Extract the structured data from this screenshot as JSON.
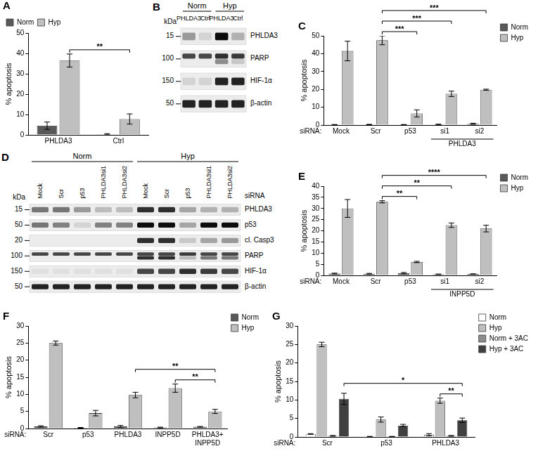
{
  "chart_data": [
    {
      "type": "bar",
      "title": "A",
      "ylabel": "% apoptosis",
      "categories": [
        "PHLDA3",
        "Ctrl"
      ],
      "series": [
        {
          "name": "Norm",
          "color": "#595959",
          "values": [
            4.5,
            0.3
          ],
          "errors": [
            1.8,
            0.3
          ]
        },
        {
          "name": "Hyp",
          "color": "#bfbfbf",
          "values": [
            36.5,
            7.8
          ],
          "errors": [
            3.2,
            2.5
          ]
        }
      ],
      "ylim": [
        0,
        50
      ],
      "yticks": [
        0,
        10,
        20,
        30,
        40,
        50
      ],
      "grid": false,
      "legend": "upper left",
      "annotations": [
        {
          "from": {
            "category": "PHLDA3",
            "series": "Hyp"
          },
          "to": {
            "category": "Ctrl",
            "series": "Hyp"
          },
          "label": "**"
        }
      ]
    },
    {
      "type": "bar",
      "title": "C",
      "ylabel": "% apoptosis",
      "xlabel": "siRNA:",
      "categories": [
        "Mock",
        "Scr",
        "p53",
        "si1",
        "si2"
      ],
      "category_groups": [
        {
          "label": "PHLDA3",
          "categories": [
            "si1",
            "si2"
          ]
        }
      ],
      "series": [
        {
          "name": "Norm",
          "color": "#595959",
          "values": [
            0.2,
            0.3,
            0.2,
            0.3,
            0.7
          ],
          "errors": [
            0.1,
            0.1,
            0.1,
            0.2,
            0.3
          ]
        },
        {
          "name": "Hyp",
          "color": "#bfbfbf",
          "values": [
            41.5,
            47.5,
            6.5,
            17.5,
            19.8
          ],
          "errors": [
            5.5,
            2.5,
            2,
            1.5,
            0.3
          ]
        }
      ],
      "ylim": [
        0,
        50
      ],
      "yticks": [
        0,
        10,
        20,
        30,
        40,
        50
      ],
      "grid": false,
      "legend": "upper right",
      "annotations": [
        {
          "from": {
            "category": "Scr",
            "series": "Hyp"
          },
          "to": {
            "category": "p53",
            "series": "Hyp"
          },
          "label": "***"
        },
        {
          "from": {
            "category": "Scr",
            "series": "Hyp"
          },
          "to": {
            "category": "si1",
            "series": "Hyp"
          },
          "label": "***"
        },
        {
          "from": {
            "category": "Scr",
            "series": "Hyp"
          },
          "to": {
            "category": "si2",
            "series": "Hyp"
          },
          "label": "***"
        }
      ]
    },
    {
      "type": "bar",
      "title": "E",
      "ylabel": "% apoptosis",
      "xlabel": "siRNA:",
      "categories": [
        "Mock",
        "Scr",
        "p53",
        "si1",
        "si2"
      ],
      "category_groups": [
        {
          "label": "INPP5D",
          "categories": [
            "si1",
            "si2"
          ]
        }
      ],
      "series": [
        {
          "name": "Norm",
          "color": "#595959",
          "values": [
            0.8,
            0.7,
            1.0,
            0.5,
            0.6
          ],
          "errors": [
            0.2,
            0.2,
            0.3,
            0.1,
            0.1
          ]
        },
        {
          "name": "Hyp",
          "color": "#bfbfbf",
          "values": [
            30,
            33,
            6,
            22.5,
            21
          ],
          "errors": [
            4,
            0.5,
            0.3,
            1,
            1.5
          ]
        }
      ],
      "ylim": [
        0,
        40
      ],
      "yticks": [
        0,
        5,
        10,
        15,
        20,
        25,
        30,
        35,
        40
      ],
      "grid": false,
      "legend": "upper right",
      "annotations": [
        {
          "from": {
            "category": "Scr",
            "series": "Hyp"
          },
          "to": {
            "category": "p53",
            "series": "Hyp"
          },
          "label": "**"
        },
        {
          "from": {
            "category": "Scr",
            "series": "Hyp"
          },
          "to": {
            "category": "si1",
            "series": "Hyp"
          },
          "label": "**"
        },
        {
          "from": {
            "category": "Scr",
            "series": "Hyp"
          },
          "to": {
            "category": "si2",
            "series": "Hyp"
          },
          "label": "****"
        }
      ]
    },
    {
      "type": "bar",
      "title": "F",
      "ylabel": "% apoptosis",
      "xlabel": "siRNA:",
      "categories": [
        "Scr",
        "p53",
        "PHLDA3",
        "INPP5D",
        "PHLDA3+INPP5D"
      ],
      "series": [
        {
          "name": "Norm",
          "color": "#595959",
          "values": [
            0.6,
            0.2,
            0.6,
            0.3,
            0.5
          ],
          "errors": [
            0.2,
            0.1,
            0.3,
            0.1,
            0.1
          ]
        },
        {
          "name": "Hyp",
          "color": "#bfbfbf",
          "values": [
            25,
            4.5,
            9.8,
            11.8,
            5
          ],
          "errors": [
            0.6,
            0.8,
            0.8,
            1.2,
            0.6
          ]
        }
      ],
      "ylim": [
        0,
        30
      ],
      "yticks": [
        0,
        5,
        10,
        15,
        20,
        25,
        30
      ],
      "grid": false,
      "legend": "upper right",
      "annotations": [
        {
          "from": {
            "category": "PHLDA3",
            "series": "Hyp"
          },
          "to": {
            "category": "PHLDA3+INPP5D",
            "series": "Hyp"
          },
          "label": "**"
        },
        {
          "from": {
            "category": "INPP5D",
            "series": "Hyp"
          },
          "to": {
            "category": "PHLDA3+INPP5D",
            "series": "Hyp"
          },
          "label": "**"
        }
      ]
    },
    {
      "type": "bar",
      "title": "G",
      "ylabel": "% apoptosis",
      "xlabel": "siRNA:",
      "categories": [
        "Scr",
        "p53",
        "PHLDA3"
      ],
      "series": [
        {
          "name": "Norm",
          "color": "#ffffff",
          "values": [
            0.8,
            0.1,
            0.6
          ],
          "errors": [
            0.1,
            0.05,
            0.3
          ]
        },
        {
          "name": "Hyp",
          "color": "#bfbfbf",
          "values": [
            25,
            4.7,
            9.8
          ],
          "errors": [
            0.6,
            0.7,
            0.7
          ]
        },
        {
          "name": "Norm + 3AC",
          "color": "#8c8c8c",
          "values": [
            0.3,
            0.1,
            0.3
          ],
          "errors": [
            0.1,
            0.05,
            0.1
          ]
        },
        {
          "name": "Hyp + 3AC",
          "color": "#404040",
          "values": [
            10.3,
            3.1,
            4.5
          ],
          "errors": [
            1.5,
            0.3,
            0.6
          ]
        }
      ],
      "ylim": [
        0,
        30
      ],
      "yticks": [
        0,
        5,
        10,
        15,
        20,
        25,
        30
      ],
      "grid": false,
      "legend": "upper right",
      "annotations": [
        {
          "from": {
            "category": "Scr",
            "series": "Hyp + 3AC"
          },
          "to": {
            "category": "PHLDA3",
            "series": "Hyp + 3AC"
          },
          "label": "*"
        },
        {
          "from": {
            "category": "PHLDA3",
            "series": "Hyp"
          },
          "to": {
            "category": "PHLDA3",
            "series": "Hyp + 3AC"
          },
          "label": "**"
        }
      ]
    }
  ],
  "blots": [
    {
      "title": "B",
      "marker_label": "kDa",
      "groups": [
        {
          "label": "Norm",
          "lanes": [
            "PHLDA3",
            "Ctrl"
          ]
        },
        {
          "label": "Hyp",
          "lanes": [
            "PHLDA3",
            "Ctrl"
          ]
        }
      ],
      "rows": [
        {
          "label": "PHLDA3",
          "marker": 15,
          "bands": [
            [
              0.35,
              0.1,
              0.95,
              0.25
            ]
          ]
        },
        {
          "label": "PARP",
          "marker": 100,
          "bands": [
            [
              0.7,
              0.7,
              0.8,
              0.75
            ],
            [
              0,
              0,
              0.4,
              0.15
            ]
          ]
        },
        {
          "label": "HIF-1α",
          "marker": 150,
          "bands": [
            [
              0.1,
              0.1,
              0.85,
              0.85
            ]
          ]
        },
        {
          "label": "β-actin",
          "marker": 50,
          "bands": [
            [
              0.85,
              0.85,
              0.85,
              0.85
            ]
          ]
        }
      ]
    },
    {
      "title": "D",
      "marker_label": "kDa",
      "lane_label": "siRNA",
      "groups": [
        {
          "label": "Norm",
          "lanes": [
            "Mock",
            "Scr",
            "p53",
            "PHLDA3si1",
            "PHLDA3si2"
          ]
        },
        {
          "label": "Hyp",
          "lanes": [
            "Mock",
            "Scr",
            "p53",
            "PHLDA3si1",
            "PHLDA3si2"
          ]
        }
      ],
      "rows": [
        {
          "label": "PHLDA3",
          "marker": 15,
          "bands": [
            [
              0.5,
              0.5,
              0.35,
              0.2,
              0.2,
              0.8,
              0.8,
              0.3,
              0.25,
              0.25
            ]
          ]
        },
        {
          "label": "p53",
          "marker": 50,
          "bands": [
            [
              0.5,
              0.45,
              0.1,
              0.45,
              0.45,
              0.95,
              0.95,
              0.3,
              0.95,
              0.95
            ]
          ]
        },
        {
          "label": "cl. Casp3",
          "marker": 20,
          "bands": [
            [
              0,
              0,
              0,
              0,
              0,
              0.8,
              0.8,
              0.15,
              0.3,
              0.35
            ]
          ]
        },
        {
          "label": "PARP",
          "marker": 100,
          "bands": [
            [
              0.7,
              0.7,
              0.7,
              0.7,
              0.7,
              0.7,
              0.7,
              0.75,
              0.7,
              0.7
            ],
            [
              0,
              0,
              0,
              0,
              0,
              0.8,
              0.8,
              0.2,
              0.5,
              0.5
            ]
          ]
        },
        {
          "label": "HIF-1α",
          "marker": 150,
          "bands": [
            [
              0.05,
              0.05,
              0.05,
              0.05,
              0.05,
              0.7,
              0.7,
              0.8,
              0.75,
              0.7
            ]
          ]
        },
        {
          "label": "β-actin",
          "marker": 50,
          "bands": [
            [
              0.85,
              0.85,
              0.85,
              0.85,
              0.85,
              0.85,
              0.85,
              0.85,
              0.85,
              0.85
            ]
          ]
        }
      ]
    }
  ]
}
